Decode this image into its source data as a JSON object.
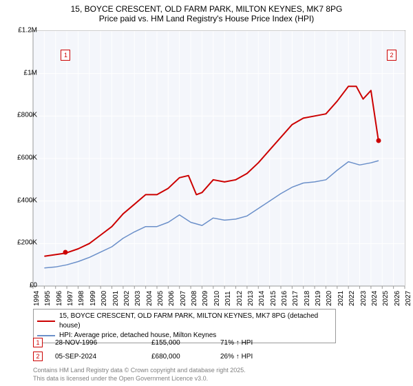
{
  "title": {
    "line1": "15, BOYCE CRESCENT, OLD FARM PARK, MILTON KEYNES, MK7 8PG",
    "line2": "Price paid vs. HM Land Registry's House Price Index (HPI)",
    "fontsize": 12,
    "color": "#000000"
  },
  "chart": {
    "type": "line",
    "background_color": "#ffffff",
    "plot_background": "#f4f6fb",
    "grid_color": "#ffffff",
    "axis_color": "#999999",
    "xlim": [
      1994,
      2027
    ],
    "ylim": [
      0,
      1200000
    ],
    "ytick_step": 200000,
    "ytick_labels": [
      "£0",
      "£200K",
      "£400K",
      "£600K",
      "£800K",
      "£1M",
      "£1.2M"
    ],
    "xtick_step": 1,
    "xtick_labels": [
      "1994",
      "1995",
      "1996",
      "1997",
      "1998",
      "1999",
      "2000",
      "2001",
      "2002",
      "2003",
      "2004",
      "2005",
      "2006",
      "2007",
      "2008",
      "2009",
      "2010",
      "2011",
      "2012",
      "2013",
      "2014",
      "2015",
      "2016",
      "2017",
      "2018",
      "2019",
      "2020",
      "2021",
      "2022",
      "2023",
      "2024",
      "2025",
      "2026",
      "2027"
    ],
    "label_fontsize": 10,
    "series": [
      {
        "name": "price_paid",
        "label": "15, BOYCE CRESCENT, OLD FARM PARK, MILTON KEYNES, MK7 8PG (detached house)",
        "color": "#cc0000",
        "line_width": 2,
        "x": [
          1995,
          1996.9,
          1998,
          1999,
          2000,
          2001,
          2002,
          2003,
          2004,
          2005,
          2006,
          2007,
          2007.8,
          2008.5,
          2009,
          2010,
          2011,
          2012,
          2013,
          2014,
          2015,
          2016,
          2017,
          2018,
          2019,
          2020,
          2021,
          2022,
          2022.7,
          2023.3,
          2024,
          2024.68
        ],
        "y": [
          140000,
          155000,
          175000,
          200000,
          240000,
          280000,
          340000,
          385000,
          430000,
          430000,
          460000,
          510000,
          520000,
          430000,
          440000,
          500000,
          490000,
          500000,
          530000,
          580000,
          640000,
          700000,
          760000,
          790000,
          800000,
          810000,
          870000,
          940000,
          940000,
          880000,
          920000,
          680000
        ]
      },
      {
        "name": "hpi",
        "label": "HPI: Average price, detached house, Milton Keynes",
        "color": "#6a8fc9",
        "line_width": 1.5,
        "x": [
          1995,
          1996,
          1997,
          1998,
          1999,
          2000,
          2001,
          2002,
          2003,
          2004,
          2005,
          2006,
          2007,
          2008,
          2009,
          2010,
          2011,
          2012,
          2013,
          2014,
          2015,
          2016,
          2017,
          2018,
          2019,
          2020,
          2021,
          2022,
          2023,
          2024,
          2024.68
        ],
        "y": [
          85000,
          90000,
          100000,
          115000,
          135000,
          160000,
          185000,
          225000,
          255000,
          280000,
          280000,
          300000,
          335000,
          300000,
          285000,
          320000,
          310000,
          315000,
          330000,
          365000,
          400000,
          435000,
          465000,
          485000,
          490000,
          500000,
          545000,
          585000,
          570000,
          580000,
          590000
        ]
      }
    ],
    "markers": [
      {
        "id": "1",
        "x": 1996.9,
        "y": 155000,
        "box_x_offset": -1,
        "color": "#cc0000"
      },
      {
        "id": "2",
        "x": 2024.68,
        "y": 680000,
        "box_x_offset": 18,
        "color": "#cc0000"
      }
    ]
  },
  "legend": {
    "border_color": "#999999",
    "fontsize": 10,
    "items": [
      {
        "color": "#cc0000",
        "width": 2,
        "label": "15, BOYCE CRESCENT, OLD FARM PARK, MILTON KEYNES, MK7 8PG (detached house)"
      },
      {
        "color": "#6a8fc9",
        "width": 1.5,
        "label": "HPI: Average price, detached house, Milton Keynes"
      }
    ]
  },
  "marker_table": {
    "rows": [
      {
        "id": "1",
        "date": "28-NOV-1996",
        "price": "£155,000",
        "delta": "71% ↑ HPI"
      },
      {
        "id": "2",
        "date": "05-SEP-2024",
        "price": "£680,000",
        "delta": "26% ↑ HPI"
      }
    ],
    "col_widths": {
      "date": 140,
      "price": 100,
      "delta": 100
    }
  },
  "footer": {
    "line1": "Contains HM Land Registry data © Crown copyright and database right 2025.",
    "line2": "This data is licensed under the Open Government Licence v3.0.",
    "color": "#808080",
    "fontsize": 9
  }
}
